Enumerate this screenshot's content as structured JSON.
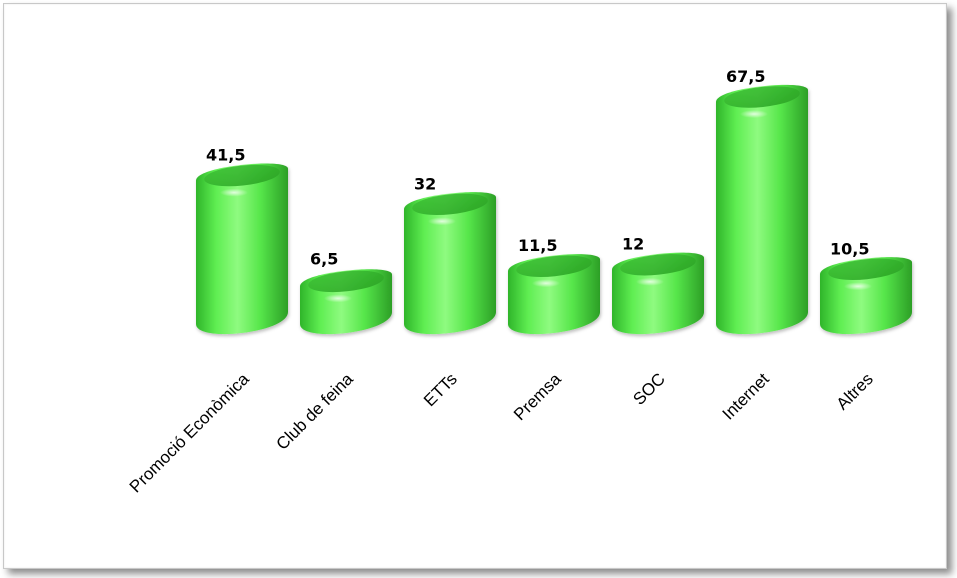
{
  "chart_data": {
    "type": "bar",
    "categories": [
      "Promoció Econòmica",
      "Club de feina",
      "ETTs",
      "Premsa",
      "SOC",
      "Internet",
      "Altres"
    ],
    "values": [
      41.5,
      6.5,
      32,
      11.5,
      12,
      67.5,
      10.5
    ],
    "value_labels": [
      "41,5",
      "6,5",
      "32",
      "11,5",
      "12",
      "67,5",
      "10,5"
    ],
    "title": "",
    "xlabel": "",
    "ylabel": "",
    "ylim": [
      0,
      67.5
    ],
    "grid": false,
    "legend": "none",
    "colors": {
      "bar": "#55e94a",
      "bar_light": "#9dfb8c",
      "bar_dark": "#2aa524",
      "bar_top": "#3cbf33"
    }
  }
}
